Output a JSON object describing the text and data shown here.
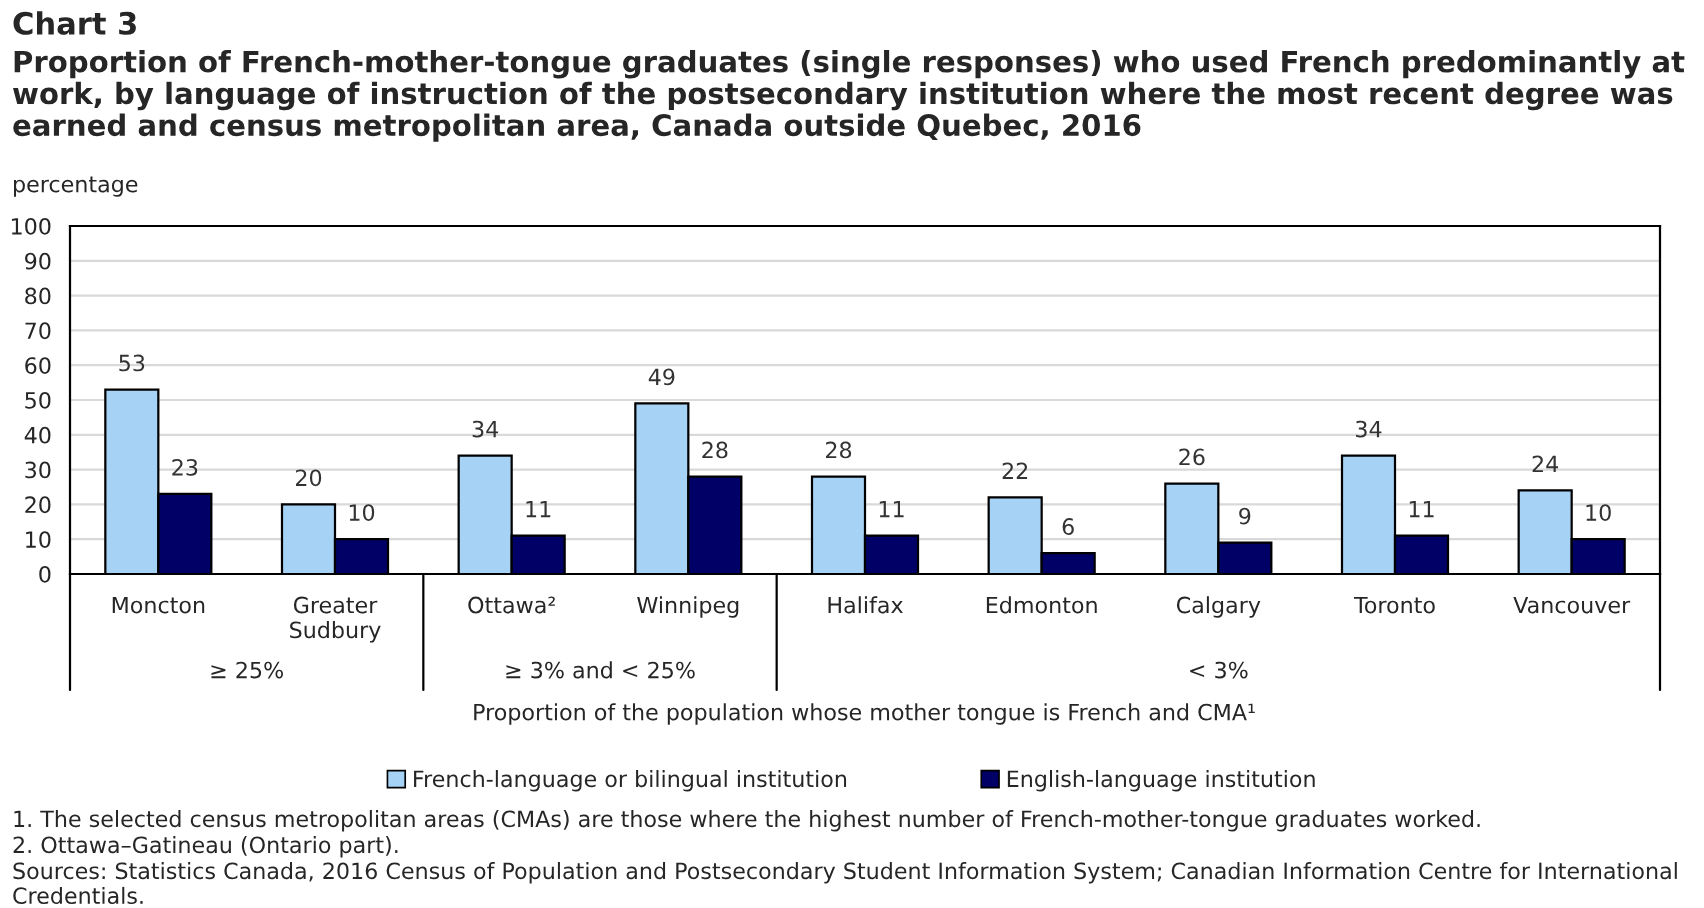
{
  "chart_data": {
    "type": "bar",
    "title": "Chart 3",
    "subtitle": "Proportion of French-mother-tongue graduates (single responses) who used French predominantly at work, by language of instruction of the postsecondary institution where the most recent degree was earned and census metropolitan area, Canada outside Quebec, 2016",
    "ylabel": "percentage",
    "xlabel": "Proportion of the population whose mother tongue is French and CMA¹",
    "categories": [
      "Moncton",
      "Greater Sudbury",
      "Ottawa²",
      "Winnipeg",
      "Halifax",
      "Edmonton",
      "Calgary",
      "Toronto",
      "Vancouver"
    ],
    "series": [
      {
        "name": "French-language or bilingual institution",
        "color": "#a6d2f5",
        "values": [
          53,
          20,
          34,
          49,
          28,
          22,
          26,
          34,
          24
        ]
      },
      {
        "name": "English-language institution",
        "color": "#000066",
        "values": [
          23,
          10,
          11,
          28,
          11,
          6,
          9,
          11,
          10
        ]
      }
    ],
    "ylim": [
      0,
      100
    ],
    "yticks": [
      0,
      10,
      20,
      30,
      40,
      50,
      60,
      70,
      80,
      90,
      100
    ],
    "grid": "y",
    "legend": "bottom",
    "data_labels": true,
    "annotations": [
      "≥ 25%",
      "≥ 3% and < 25%",
      "< 3%",
      "1. The selected census metropolitan areas (CMAs) are those where the highest number of French-mother-tongue graduates worked.",
      "2. Ottawa–Gatineau (Ontario part).",
      "Sources: Statistics Canada, 2016 Census of Population and Postsecondary Student Information System; Canadian Information Centre for International Credentials."
    ]
  }
}
